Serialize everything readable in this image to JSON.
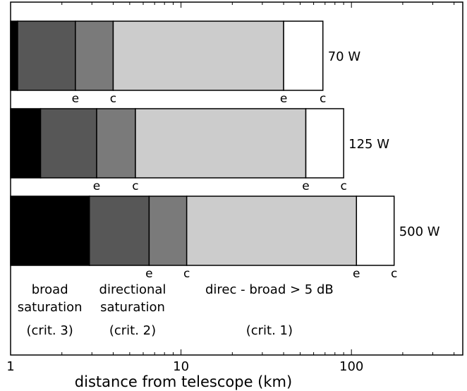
{
  "chart_data": {
    "type": "bar",
    "orientation": "horizontal-stacked",
    "xscale": "log",
    "xlim": [
      1,
      450
    ],
    "xlabel": "distance from telescope (km)",
    "xticks": [
      {
        "value": 1,
        "label": "1"
      },
      {
        "value": 10,
        "label": "10"
      },
      {
        "value": 100,
        "label": "100"
      }
    ],
    "zone_colors": [
      "#000000",
      "#575757",
      "#7a7a7a",
      "#cccccc",
      "#ffffff"
    ],
    "series": [
      {
        "name": "70 W",
        "boundaries": [
          1,
          1.1,
          2.4,
          4.0,
          40,
          68
        ],
        "markers": [
          {
            "value": 2.4,
            "label": "e"
          },
          {
            "value": 4.0,
            "label": "c"
          },
          {
            "value": 40,
            "label": "e"
          },
          {
            "value": 68,
            "label": "c"
          }
        ]
      },
      {
        "name": "125 W",
        "boundaries": [
          1,
          1.5,
          3.2,
          5.4,
          54,
          90
        ],
        "markers": [
          {
            "value": 3.2,
            "label": "e"
          },
          {
            "value": 5.4,
            "label": "c"
          },
          {
            "value": 54,
            "label": "e"
          },
          {
            "value": 90,
            "label": "c"
          }
        ]
      },
      {
        "name": "500 W",
        "boundaries": [
          1,
          2.9,
          6.5,
          10.8,
          107,
          178
        ],
        "markers": [
          {
            "value": 6.5,
            "label": "e"
          },
          {
            "value": 10.8,
            "label": "c"
          },
          {
            "value": 107,
            "label": "e"
          },
          {
            "value": 178,
            "label": "c"
          }
        ]
      }
    ],
    "annotations": [
      {
        "lines": [
          "broad",
          "saturation"
        ],
        "crit": "(crit. 3)",
        "at": 1.7
      },
      {
        "lines": [
          "directional",
          "saturation"
        ],
        "crit": "(crit. 2)",
        "at": 5.2
      },
      {
        "lines": [
          "direc - broad > 5 dB"
        ],
        "crit": "(crit. 1)",
        "at": 33
      }
    ]
  }
}
